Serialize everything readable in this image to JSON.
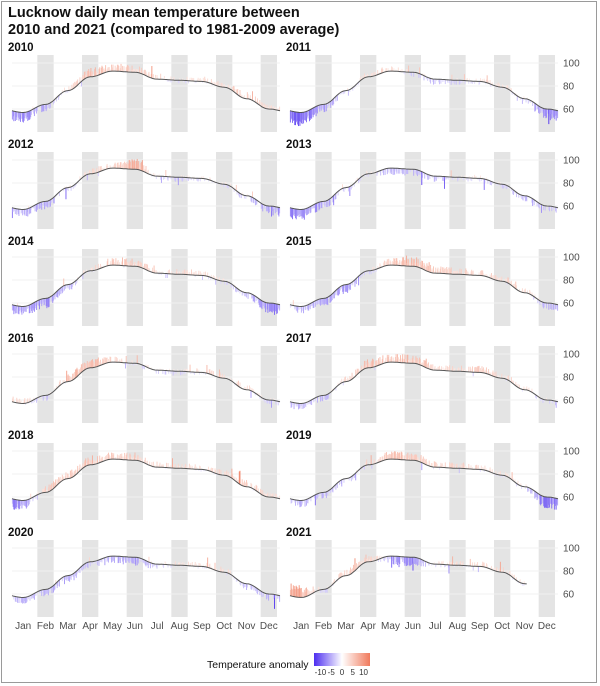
{
  "title": "Lucknow daily mean temperature between\n 2010 and 2021 (compared to 1981-2009 average)",
  "chart_data": {
    "type": "bar",
    "description_free": true,
    "x_ticks": [
      "Jan",
      "Feb",
      "Mar",
      "Apr",
      "May",
      "Jun",
      "Jul",
      "Aug",
      "Sep",
      "Oct",
      "Nov",
      "Dec"
    ],
    "y_ticks": [
      60,
      80,
      100
    ],
    "ylim": [
      40,
      107
    ],
    "baseline_monthly": [
      57,
      64,
      76,
      88,
      93,
      92,
      86,
      85,
      84,
      79,
      69,
      60
    ],
    "legend": {
      "title": "Temperature anomaly",
      "tick_labels": [
        "-10",
        "-5",
        "0",
        "5",
        "10"
      ],
      "range": [
        -13,
        13
      ],
      "colors": {
        "negative": "#4d2ef0",
        "neutral": "#ffffff",
        "positive": "#f07a5c"
      }
    },
    "grid": true,
    "panels": [
      {
        "year": "2010",
        "anomaly_profile": [
          -6,
          -3,
          1,
          5,
          4,
          3,
          1,
          0,
          1,
          2,
          3,
          1
        ]
      },
      {
        "year": "2011",
        "anomaly_profile": [
          -9,
          -4,
          -1,
          2,
          2,
          -1,
          -2,
          -1,
          0,
          1,
          0,
          -6
        ]
      },
      {
        "year": "2012",
        "anomaly_profile": [
          -3,
          -4,
          -1,
          2,
          2,
          7,
          -1,
          -1,
          0,
          0,
          -1,
          -5
        ]
      },
      {
        "year": "2013",
        "anomaly_profile": [
          -7,
          -4,
          -1,
          0,
          -3,
          -3,
          -2,
          -1,
          0,
          -1,
          -2,
          -2
        ]
      },
      {
        "year": "2014",
        "anomaly_profile": [
          -5,
          -6,
          -3,
          1,
          3,
          4,
          1,
          2,
          1,
          0,
          -2,
          -6
        ]
      },
      {
        "year": "2015",
        "anomaly_profile": [
          -3,
          -4,
          -5,
          -1,
          3,
          6,
          3,
          3,
          2,
          2,
          2,
          -3
        ]
      },
      {
        "year": "2016",
        "anomaly_profile": [
          2,
          -3,
          4,
          6,
          2,
          0,
          -1,
          -1,
          1,
          2,
          2,
          -1
        ]
      },
      {
        "year": "2017",
        "anomaly_profile": [
          -3,
          -2,
          2,
          5,
          4,
          5,
          2,
          2,
          3,
          2,
          1,
          -1
        ]
      },
      {
        "year": "2018",
        "anomaly_profile": [
          -6,
          3,
          4,
          4,
          3,
          4,
          1,
          2,
          1,
          2,
          3,
          1
        ]
      },
      {
        "year": "2019",
        "anomaly_profile": [
          -3,
          -3,
          -2,
          1,
          4,
          4,
          2,
          3,
          1,
          1,
          0,
          -8
        ]
      },
      {
        "year": "2020",
        "anomaly_profile": [
          -3,
          -3,
          -4,
          -2,
          -3,
          -5,
          -1,
          1,
          1,
          2,
          -3,
          -3
        ]
      },
      {
        "year": "2021",
        "anomaly_profile": [
          8,
          -2,
          3,
          4,
          -4,
          -6,
          0,
          1,
          2,
          1
        ],
        "end_month": 10.6
      }
    ]
  }
}
